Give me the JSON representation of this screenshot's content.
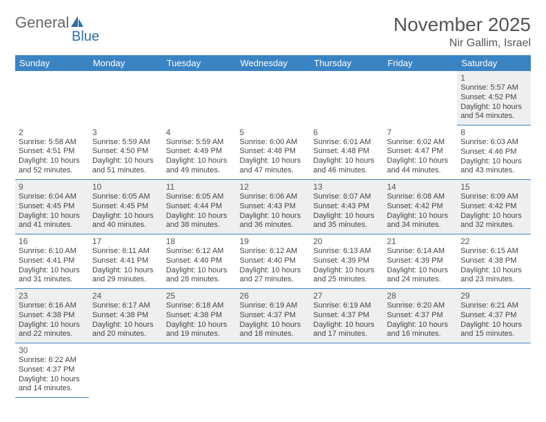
{
  "logo": {
    "text1": "General",
    "text2": "Blue"
  },
  "title": "November 2025",
  "location": "Nir Gallim, Israel",
  "colors": {
    "header_bg": "#3b84c4",
    "header_text": "#ffffff",
    "row_alt": "#efefef",
    "row_line": "#3b84c4",
    "logo_accent": "#2f6fa8",
    "text": "#555555"
  },
  "weekdays": [
    "Sunday",
    "Monday",
    "Tuesday",
    "Wednesday",
    "Thursday",
    "Friday",
    "Saturday"
  ],
  "weeks": [
    [
      null,
      null,
      null,
      null,
      null,
      null,
      {
        "n": "1",
        "sr": "Sunrise: 5:57 AM",
        "ss": "Sunset: 4:52 PM",
        "dl": "Daylight: 10 hours and 54 minutes."
      }
    ],
    [
      {
        "n": "2",
        "sr": "Sunrise: 5:58 AM",
        "ss": "Sunset: 4:51 PM",
        "dl": "Daylight: 10 hours and 52 minutes."
      },
      {
        "n": "3",
        "sr": "Sunrise: 5:59 AM",
        "ss": "Sunset: 4:50 PM",
        "dl": "Daylight: 10 hours and 51 minutes."
      },
      {
        "n": "4",
        "sr": "Sunrise: 5:59 AM",
        "ss": "Sunset: 4:49 PM",
        "dl": "Daylight: 10 hours and 49 minutes."
      },
      {
        "n": "5",
        "sr": "Sunrise: 6:00 AM",
        "ss": "Sunset: 4:48 PM",
        "dl": "Daylight: 10 hours and 47 minutes."
      },
      {
        "n": "6",
        "sr": "Sunrise: 6:01 AM",
        "ss": "Sunset: 4:48 PM",
        "dl": "Daylight: 10 hours and 46 minutes."
      },
      {
        "n": "7",
        "sr": "Sunrise: 6:02 AM",
        "ss": "Sunset: 4:47 PM",
        "dl": "Daylight: 10 hours and 44 minutes."
      },
      {
        "n": "8",
        "sr": "Sunrise: 6:03 AM",
        "ss": "Sunset: 4:46 PM",
        "dl": "Daylight: 10 hours and 43 minutes."
      }
    ],
    [
      {
        "n": "9",
        "sr": "Sunrise: 6:04 AM",
        "ss": "Sunset: 4:45 PM",
        "dl": "Daylight: 10 hours and 41 minutes."
      },
      {
        "n": "10",
        "sr": "Sunrise: 6:05 AM",
        "ss": "Sunset: 4:45 PM",
        "dl": "Daylight: 10 hours and 40 minutes."
      },
      {
        "n": "11",
        "sr": "Sunrise: 6:05 AM",
        "ss": "Sunset: 4:44 PM",
        "dl": "Daylight: 10 hours and 38 minutes."
      },
      {
        "n": "12",
        "sr": "Sunrise: 6:06 AM",
        "ss": "Sunset: 4:43 PM",
        "dl": "Daylight: 10 hours and 36 minutes."
      },
      {
        "n": "13",
        "sr": "Sunrise: 6:07 AM",
        "ss": "Sunset: 4:43 PM",
        "dl": "Daylight: 10 hours and 35 minutes."
      },
      {
        "n": "14",
        "sr": "Sunrise: 6:08 AM",
        "ss": "Sunset: 4:42 PM",
        "dl": "Daylight: 10 hours and 34 minutes."
      },
      {
        "n": "15",
        "sr": "Sunrise: 6:09 AM",
        "ss": "Sunset: 4:42 PM",
        "dl": "Daylight: 10 hours and 32 minutes."
      }
    ],
    [
      {
        "n": "16",
        "sr": "Sunrise: 6:10 AM",
        "ss": "Sunset: 4:41 PM",
        "dl": "Daylight: 10 hours and 31 minutes."
      },
      {
        "n": "17",
        "sr": "Sunrise: 6:11 AM",
        "ss": "Sunset: 4:41 PM",
        "dl": "Daylight: 10 hours and 29 minutes."
      },
      {
        "n": "18",
        "sr": "Sunrise: 6:12 AM",
        "ss": "Sunset: 4:40 PM",
        "dl": "Daylight: 10 hours and 28 minutes."
      },
      {
        "n": "19",
        "sr": "Sunrise: 6:12 AM",
        "ss": "Sunset: 4:40 PM",
        "dl": "Daylight: 10 hours and 27 minutes."
      },
      {
        "n": "20",
        "sr": "Sunrise: 6:13 AM",
        "ss": "Sunset: 4:39 PM",
        "dl": "Daylight: 10 hours and 25 minutes."
      },
      {
        "n": "21",
        "sr": "Sunrise: 6:14 AM",
        "ss": "Sunset: 4:39 PM",
        "dl": "Daylight: 10 hours and 24 minutes."
      },
      {
        "n": "22",
        "sr": "Sunrise: 6:15 AM",
        "ss": "Sunset: 4:38 PM",
        "dl": "Daylight: 10 hours and 23 minutes."
      }
    ],
    [
      {
        "n": "23",
        "sr": "Sunrise: 6:16 AM",
        "ss": "Sunset: 4:38 PM",
        "dl": "Daylight: 10 hours and 22 minutes."
      },
      {
        "n": "24",
        "sr": "Sunrise: 6:17 AM",
        "ss": "Sunset: 4:38 PM",
        "dl": "Daylight: 10 hours and 20 minutes."
      },
      {
        "n": "25",
        "sr": "Sunrise: 6:18 AM",
        "ss": "Sunset: 4:38 PM",
        "dl": "Daylight: 10 hours and 19 minutes."
      },
      {
        "n": "26",
        "sr": "Sunrise: 6:19 AM",
        "ss": "Sunset: 4:37 PM",
        "dl": "Daylight: 10 hours and 18 minutes."
      },
      {
        "n": "27",
        "sr": "Sunrise: 6:19 AM",
        "ss": "Sunset: 4:37 PM",
        "dl": "Daylight: 10 hours and 17 minutes."
      },
      {
        "n": "28",
        "sr": "Sunrise: 6:20 AM",
        "ss": "Sunset: 4:37 PM",
        "dl": "Daylight: 10 hours and 16 minutes."
      },
      {
        "n": "29",
        "sr": "Sunrise: 6:21 AM",
        "ss": "Sunset: 4:37 PM",
        "dl": "Daylight: 10 hours and 15 minutes."
      }
    ],
    [
      {
        "n": "30",
        "sr": "Sunrise: 6:22 AM",
        "ss": "Sunset: 4:37 PM",
        "dl": "Daylight: 10 hours and 14 minutes."
      },
      null,
      null,
      null,
      null,
      null,
      null
    ]
  ]
}
